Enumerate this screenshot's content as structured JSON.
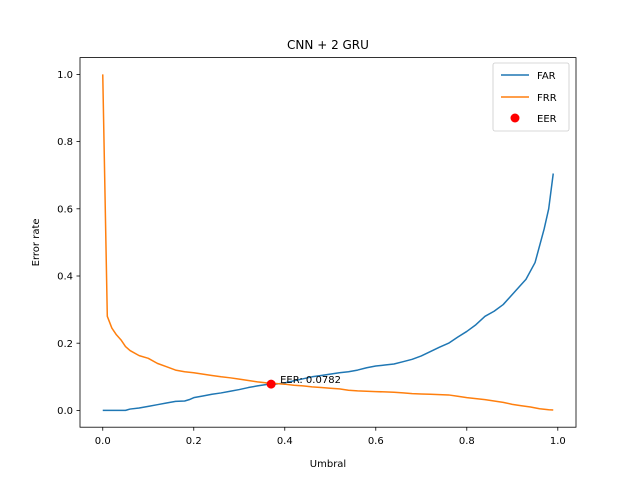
{
  "chart_data": {
    "type": "line",
    "title": "CNN + 2 GRU",
    "xlabel": "Umbral",
    "ylabel": "Error rate",
    "xlim": [
      -0.05,
      1.04
    ],
    "ylim": [
      -0.05,
      1.05
    ],
    "xticks": [
      0.0,
      0.2,
      0.4,
      0.6,
      0.8,
      1.0
    ],
    "xtick_labels": [
      "0.0",
      "0.2",
      "0.4",
      "0.6",
      "0.8",
      "1.0"
    ],
    "yticks": [
      0.0,
      0.2,
      0.4,
      0.6,
      0.8,
      1.0
    ],
    "ytick_labels": [
      "0.0",
      "0.2",
      "0.4",
      "0.6",
      "0.8",
      "1.0"
    ],
    "legend_position": "top-right",
    "series": [
      {
        "name": "FAR",
        "color": "#1f77b4",
        "x": [
          0.0,
          0.05,
          0.06,
          0.08,
          0.1,
          0.12,
          0.14,
          0.16,
          0.18,
          0.19,
          0.2,
          0.22,
          0.24,
          0.26,
          0.28,
          0.3,
          0.32,
          0.34,
          0.36,
          0.38,
          0.4,
          0.42,
          0.44,
          0.46,
          0.48,
          0.5,
          0.52,
          0.54,
          0.56,
          0.58,
          0.6,
          0.62,
          0.64,
          0.66,
          0.68,
          0.7,
          0.72,
          0.74,
          0.76,
          0.78,
          0.8,
          0.82,
          0.84,
          0.86,
          0.88,
          0.9,
          0.92,
          0.93,
          0.95,
          0.97,
          0.98,
          0.99
        ],
        "y": [
          0.0,
          0.0,
          0.004,
          0.007,
          0.012,
          0.017,
          0.022,
          0.027,
          0.028,
          0.032,
          0.038,
          0.043,
          0.048,
          0.052,
          0.057,
          0.062,
          0.068,
          0.073,
          0.077,
          0.078,
          0.082,
          0.088,
          0.094,
          0.1,
          0.104,
          0.108,
          0.112,
          0.115,
          0.12,
          0.127,
          0.132,
          0.135,
          0.138,
          0.145,
          0.152,
          0.162,
          0.175,
          0.188,
          0.2,
          0.218,
          0.235,
          0.255,
          0.28,
          0.295,
          0.315,
          0.345,
          0.375,
          0.39,
          0.44,
          0.54,
          0.6,
          0.705
        ]
      },
      {
        "name": "FRR",
        "color": "#ff7f0e",
        "x": [
          0.0,
          0.01,
          0.02,
          0.03,
          0.04,
          0.05,
          0.06,
          0.08,
          0.1,
          0.12,
          0.14,
          0.16,
          0.18,
          0.2,
          0.22,
          0.24,
          0.26,
          0.28,
          0.3,
          0.32,
          0.34,
          0.36,
          0.38,
          0.4,
          0.42,
          0.44,
          0.46,
          0.48,
          0.5,
          0.52,
          0.54,
          0.56,
          0.58,
          0.6,
          0.62,
          0.64,
          0.66,
          0.68,
          0.7,
          0.72,
          0.74,
          0.76,
          0.78,
          0.8,
          0.82,
          0.84,
          0.86,
          0.88,
          0.9,
          0.92,
          0.94,
          0.96,
          0.98,
          0.99
        ],
        "y": [
          1.0,
          0.28,
          0.245,
          0.225,
          0.21,
          0.19,
          0.178,
          0.163,
          0.155,
          0.14,
          0.13,
          0.12,
          0.115,
          0.112,
          0.108,
          0.104,
          0.1,
          0.097,
          0.093,
          0.089,
          0.085,
          0.082,
          0.08,
          0.078,
          0.075,
          0.073,
          0.07,
          0.068,
          0.066,
          0.064,
          0.06,
          0.058,
          0.057,
          0.056,
          0.055,
          0.054,
          0.052,
          0.05,
          0.049,
          0.048,
          0.047,
          0.046,
          0.042,
          0.038,
          0.035,
          0.032,
          0.028,
          0.024,
          0.018,
          0.014,
          0.01,
          0.005,
          0.002,
          0.001
        ]
      }
    ],
    "eer": {
      "name": "EER",
      "color": "#ff0000",
      "x": 0.37,
      "y": 0.0782,
      "label": "EER: 0.0782"
    }
  }
}
